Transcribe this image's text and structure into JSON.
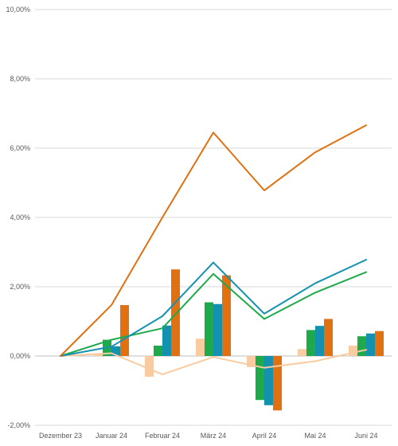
{
  "chart_data": {
    "type": "bar",
    "title": "",
    "xlabel": "",
    "ylabel": "",
    "categories": [
      "Dezember 23",
      "Januar 24",
      "Februar 24",
      "März 24",
      "April 24",
      "Mai 24",
      "Juni 24"
    ],
    "ylim": [
      -2,
      10
    ],
    "yticks": [
      -2,
      0,
      2,
      4,
      6,
      8,
      10
    ],
    "ytick_labels": [
      "-2,00%",
      "0,00%",
      "2,00%",
      "4,00%",
      "6,00%",
      "8,00%",
      "10,00%"
    ],
    "grid": true,
    "legend": "none",
    "bar_series": [
      {
        "color": "#f8cba0",
        "values": [
          0.0,
          0.08,
          -0.6,
          0.5,
          -0.32,
          0.2,
          0.3
        ]
      },
      {
        "color": "#1eaa4b",
        "values": [
          0.0,
          0.47,
          0.3,
          1.55,
          -1.27,
          0.75,
          0.57
        ]
      },
      {
        "color": "#1591b0",
        "values": [
          0.0,
          0.28,
          0.88,
          1.5,
          -1.42,
          0.87,
          0.65
        ]
      },
      {
        "color": "#e07010",
        "values": [
          0.0,
          1.47,
          2.5,
          2.33,
          -1.57,
          1.07,
          0.72
        ]
      }
    ],
    "line_series": [
      {
        "color": "#f8cba0",
        "values": [
          0.0,
          0.08,
          -0.53,
          -0.03,
          -0.34,
          -0.15,
          0.18
        ]
      },
      {
        "color": "#1eaa4b",
        "values": [
          0.0,
          0.47,
          0.8,
          2.37,
          1.07,
          1.83,
          2.42
        ]
      },
      {
        "color": "#1591b0",
        "values": [
          0.0,
          0.27,
          1.15,
          2.7,
          1.22,
          2.1,
          2.78
        ]
      },
      {
        "color": "#e07010",
        "values": [
          0.0,
          1.47,
          4.0,
          6.45,
          4.78,
          5.88,
          6.66
        ]
      }
    ]
  }
}
